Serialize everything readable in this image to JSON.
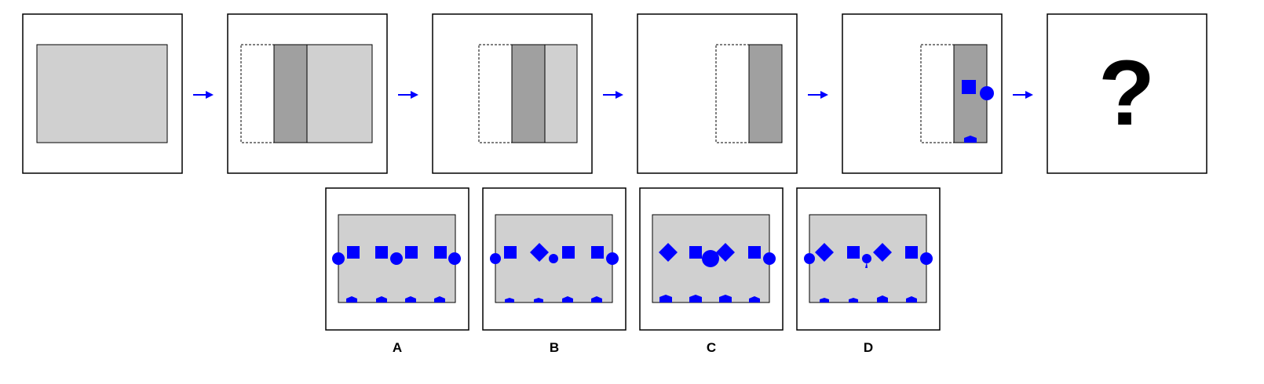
{
  "question_mark": "?",
  "options": [
    {
      "label": "A"
    },
    {
      "label": "B"
    },
    {
      "label": "C"
    },
    {
      "label": "D"
    }
  ],
  "colors": {
    "paper": "#d0d0d0",
    "folded_layer": "#a0a0a0",
    "punch": "#0000ff",
    "arrow": "#0000ff"
  },
  "icons": {
    "arrow": "arrow-right-icon",
    "punched_holes": [
      "square-icon",
      "circle-icon",
      "diamond-icon",
      "pentagon-icon"
    ]
  }
}
